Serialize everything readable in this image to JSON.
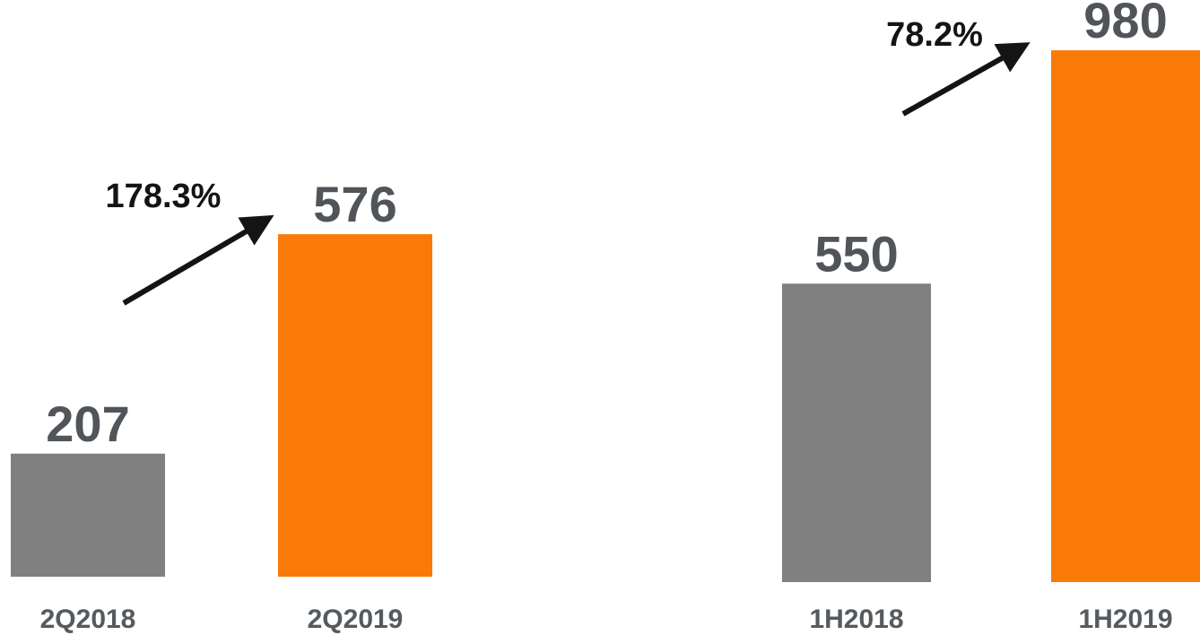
{
  "chart_data": [
    {
      "type": "bar",
      "categories": [
        "2Q2018",
        "2Q2019"
      ],
      "values": [
        207,
        576
      ],
      "colors": [
        "#808080",
        "#f97a08"
      ],
      "annotation": "178.3%"
    },
    {
      "type": "bar",
      "categories": [
        "1H2018",
        "1H2019"
      ],
      "values": [
        550,
        980
      ],
      "colors": [
        "#808080",
        "#f97a08"
      ],
      "annotation": "78.2%"
    }
  ]
}
